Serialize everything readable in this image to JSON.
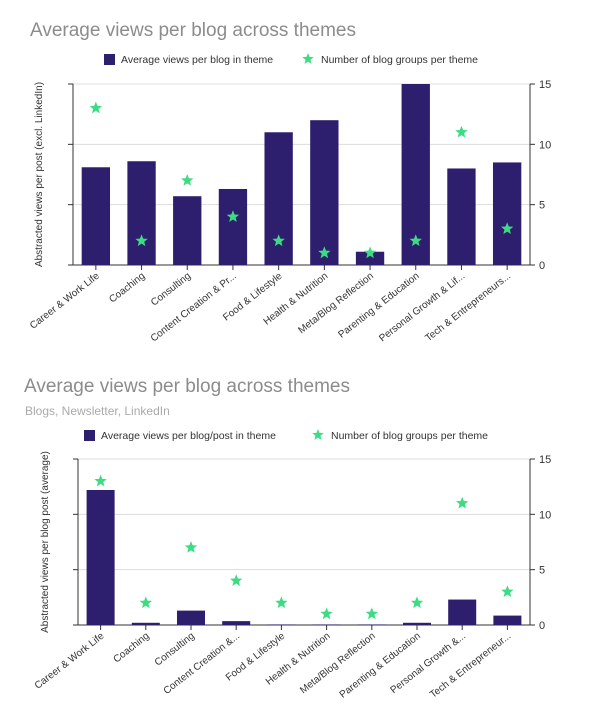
{
  "colors": {
    "bar": "#2e1f6e",
    "star": "#3ddc84",
    "title": "#8c8c8c",
    "grid": "#dddddd",
    "axis": "#333333"
  },
  "chart_data": [
    {
      "type": "bar",
      "title": "Average views per blog across themes",
      "subtitle": "",
      "ylabel": "Abstracted views per post (excl. LinkedIn)",
      "y2ticks": [
        "0",
        "5",
        "10",
        "15"
      ],
      "ylim": [
        0,
        15
      ],
      "y2lim": [
        0,
        15
      ],
      "grid": true,
      "legend": "top",
      "categories": [
        "Career & Work Life",
        "Coaching",
        "Consulting",
        "Content Creation & Pr...",
        "Food & Lifestyle",
        "Health & Nutrition",
        "Meta/Blog Reflection",
        "Parenting & Education",
        "Personal Growth & Lif...",
        "Tech & Entrepreneurs..."
      ],
      "series": [
        {
          "name": "Average views per blog in theme",
          "kind": "bar",
          "axis": "left",
          "values": [
            8.1,
            8.6,
            5.7,
            6.3,
            11.0,
            12.0,
            1.1,
            15.0,
            8.0,
            8.5
          ]
        },
        {
          "name": "Number of blog groups per theme",
          "kind": "star",
          "axis": "right",
          "values": [
            13,
            2,
            7,
            4,
            2,
            1,
            1,
            2,
            11,
            3
          ]
        }
      ]
    },
    {
      "type": "bar",
      "title": "Average views per blog across themes",
      "subtitle": "Blogs, Newsletter, LinkedIn",
      "ylabel": "Abstracted views per blog post (average)",
      "y2ticks": [
        "0",
        "5",
        "10",
        "15"
      ],
      "ylim": [
        0,
        15
      ],
      "y2lim": [
        0,
        15
      ],
      "grid": true,
      "legend": "top",
      "categories": [
        "Career & Work Life",
        "Coaching",
        "Consulting",
        "Content Creation &...",
        "Food & Lifestyle",
        "Health & Nutrition",
        "Meta/Blog Reflection",
        "Parenting & Education",
        "Personal Growth &...",
        "Tech & Entrepreneur..."
      ],
      "series": [
        {
          "name": "Average views per blog/post in theme",
          "kind": "bar",
          "axis": "left",
          "values": [
            12.2,
            0.2,
            1.3,
            0.35,
            0.05,
            0.05,
            0.05,
            0.2,
            2.3,
            0.85
          ]
        },
        {
          "name": "Number of blog groups per theme",
          "kind": "star",
          "axis": "right",
          "values": [
            13,
            2,
            7,
            4,
            2,
            1,
            1,
            2,
            11,
            3
          ]
        }
      ]
    }
  ]
}
